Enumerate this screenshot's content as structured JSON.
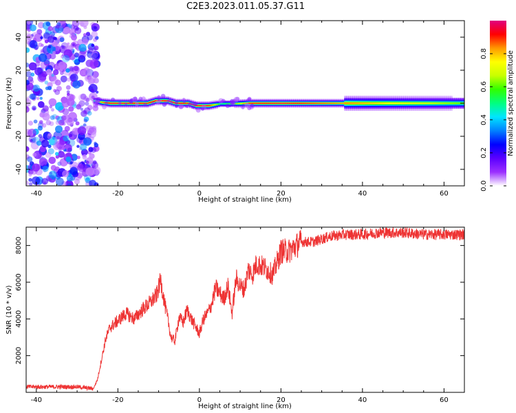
{
  "title": "C2E3.2023.011.05.37.G11",
  "chart_data": [
    {
      "type": "heatmap",
      "xlabel": "Height of straight line (km)",
      "ylabel": "Frequency (Hz)",
      "xlim": [
        -42.5,
        65
      ],
      "ylim": [
        -50,
        50
      ],
      "xticks": [
        -40,
        -20,
        0,
        20,
        40,
        60
      ],
      "yticks": [
        -40,
        -20,
        0,
        20,
        40
      ],
      "colorbar": {
        "label": "Normalized spectral amplitude",
        "range": [
          0,
          1
        ],
        "ticks": [
          "0.0",
          "0.2",
          "0.4",
          "0.6",
          "0.8"
        ],
        "colors": [
          "#ffffff",
          "#9b30ff",
          "#5b00ff",
          "#0000ff",
          "#0080ff",
          "#00e5ff",
          "#00ff80",
          "#30ff00",
          "#c8ff00",
          "#ffff00",
          "#ff9900",
          "#ff0000",
          "#e00080"
        ]
      },
      "noise_region_km": [
        -42.5,
        -26
      ],
      "ridge": {
        "x_km": [
          -26,
          -24,
          -22,
          -19,
          -13,
          -11,
          -8,
          -6,
          -3,
          -1,
          2,
          5,
          8,
          12,
          20,
          40,
          65
        ],
        "freq_hz": [
          1.5,
          0.5,
          0,
          0,
          0,
          1.5,
          1.5,
          0,
          0,
          -1.5,
          -1.5,
          -0.3,
          -0.3,
          0,
          0,
          0,
          0
        ],
        "peak_amplitude": [
          0.5,
          0.85,
          0.95,
          0.95,
          0.9,
          0.95,
          0.95,
          0.95,
          0.9,
          0.95,
          0.95,
          0.5,
          0.6,
          0.9,
          0.95,
          0.8,
          0.6
        ]
      }
    },
    {
      "type": "line",
      "xlabel": "Height of straight line (km)",
      "ylabel": "SNR (10 * v/v)",
      "xlim": [
        -42.5,
        65
      ],
      "ylim": [
        0,
        9000
      ],
      "xticks": [
        -40,
        -20,
        0,
        20,
        40,
        60
      ],
      "yticks": [
        2000,
        4000,
        6000,
        8000
      ],
      "color": "#ee3333",
      "series": [
        {
          "x": [
            -42.5,
            -35,
            -30,
            -26,
            -25,
            -24,
            -23,
            -22,
            -21,
            -20,
            -18,
            -16,
            -14,
            -12,
            -10.5,
            -9.5,
            -8.5,
            -7.5,
            -7,
            -6,
            -5,
            -4,
            -3,
            -2,
            -1,
            0,
            1,
            2,
            3,
            4,
            5,
            6,
            7,
            8,
            9,
            10,
            11,
            12,
            13,
            14,
            16,
            18,
            20,
            22,
            25,
            28,
            32,
            36,
            40,
            44,
            50,
            55,
            60,
            65
          ],
          "y": [
            300,
            300,
            300,
            200,
            700,
            1800,
            2900,
            3500,
            3700,
            3900,
            4300,
            4000,
            4500,
            4900,
            5300,
            6100,
            4800,
            3700,
            3000,
            2800,
            4100,
            3800,
            4500,
            4000,
            3600,
            3200,
            4000,
            4300,
            4800,
            5700,
            5400,
            5100,
            5800,
            4300,
            6200,
            5800,
            5600,
            6700,
            6400,
            7000,
            6800,
            6400,
            7700,
            7700,
            8200,
            8200,
            8500,
            8600,
            8600,
            8700,
            8700,
            8600,
            8600,
            8600
          ]
        }
      ]
    }
  ]
}
